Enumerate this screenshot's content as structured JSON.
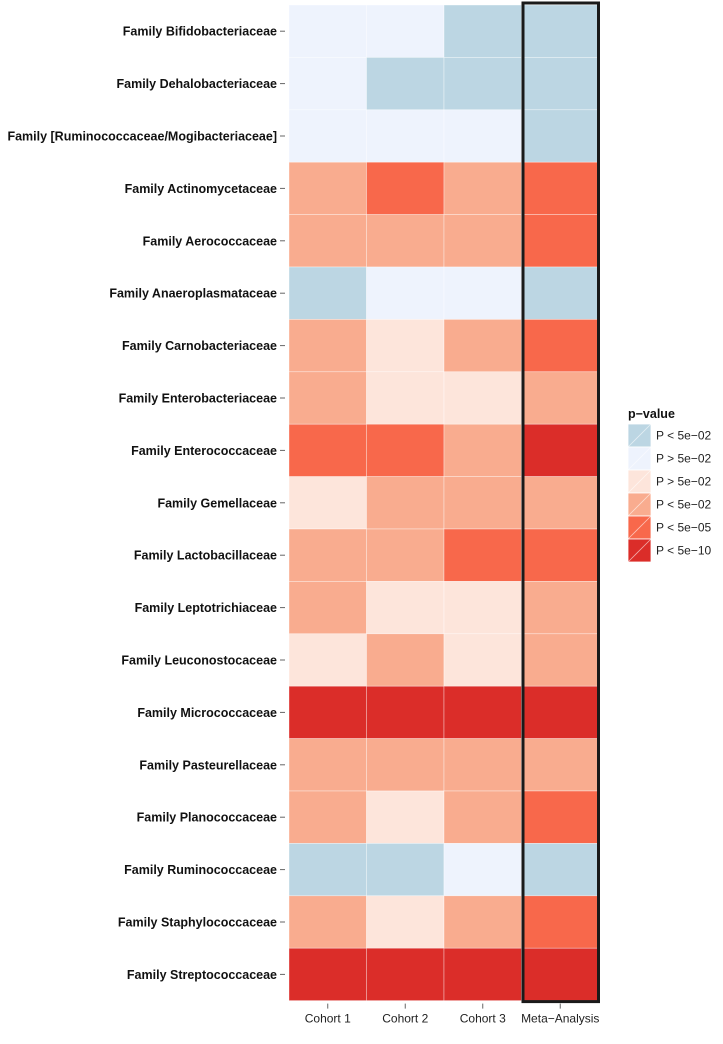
{
  "chart_data": {
    "type": "heatmap",
    "x_categories": [
      "Cohort 1",
      "Cohort 2",
      "Cohort 3",
      "Meta−Analysis"
    ],
    "y_categories": [
      "Family  Bifidobacteriaceae",
      "Family  Dehalobacteriaceae",
      "Family [Ruminococcaceae/Mogibacteriaceae]",
      "Family Actinomycetaceae",
      "Family Aerococcaceae",
      "Family Anaeroplasmataceae",
      "Family Carnobacteriaceae",
      "Family Enterobacteriaceae",
      "Family Enterococcaceae",
      "Family Gemellaceae",
      "Family Lactobacillaceae",
      "Family Leptotrichiaceae",
      "Family Leuconostocaceae",
      "Family Micrococcaceae",
      "Family Pasteurellaceae",
      "Family Planococcaceae",
      "Family Ruminococcaceae",
      "Family Staphylococcaceae",
      "Family Streptococcaceae"
    ],
    "values": [
      [
        1,
        1,
        0,
        0
      ],
      [
        1,
        0,
        0,
        0
      ],
      [
        1,
        1,
        1,
        0
      ],
      [
        3,
        4,
        3,
        4
      ],
      [
        3,
        3,
        3,
        4
      ],
      [
        0,
        1,
        1,
        0
      ],
      [
        3,
        2,
        3,
        4
      ],
      [
        3,
        2,
        2,
        3
      ],
      [
        4,
        4,
        3,
        5
      ],
      [
        2,
        3,
        3,
        3
      ],
      [
        3,
        3,
        4,
        4
      ],
      [
        3,
        2,
        2,
        3
      ],
      [
        2,
        3,
        2,
        3
      ],
      [
        5,
        5,
        5,
        5
      ],
      [
        3,
        3,
        3,
        3
      ],
      [
        3,
        2,
        3,
        4
      ],
      [
        0,
        0,
        1,
        0
      ],
      [
        3,
        2,
        3,
        4
      ],
      [
        5,
        5,
        5,
        5
      ]
    ],
    "legend": {
      "title": "p−value",
      "placement": "right",
      "entries": [
        {
          "label": "P < 5e−02",
          "color": "#bcd6e3"
        },
        {
          "label": "P > 5e−02",
          "color": "#eef3fd"
        },
        {
          "label": "P > 5e−02",
          "color": "#fde5db"
        },
        {
          "label": "P < 5e−02",
          "color": "#f9ac8f"
        },
        {
          "label": "P < 5e−05",
          "color": "#f8684b"
        },
        {
          "label": "P < 5e−10",
          "color": "#db2d29"
        }
      ]
    },
    "highlighted_column": "Meta−Analysis",
    "grid": false
  }
}
